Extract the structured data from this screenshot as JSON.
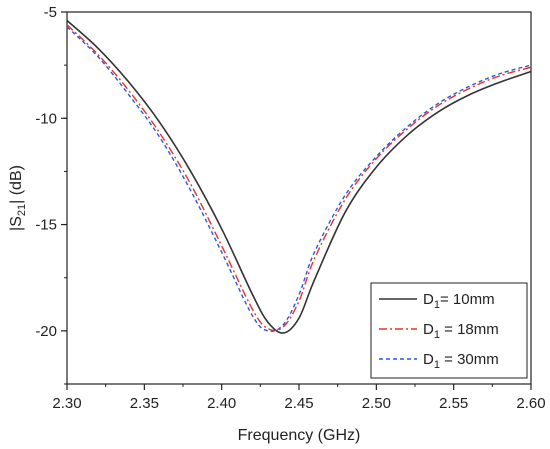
{
  "chart_data": {
    "type": "line",
    "title": "",
    "xlabel": "Frequency (GHz)",
    "ylabel": {
      "prefix": "|S",
      "sub": "21",
      "suffix": "| (dB)"
    },
    "xlim": [
      2.3,
      2.6
    ],
    "ylim": [
      -22.5,
      -5
    ],
    "xticks": [
      "2.30",
      "2.35",
      "2.40",
      "2.45",
      "2.50",
      "2.55",
      "2.60"
    ],
    "yticks": [
      "-5",
      "-10",
      "-15",
      "-20"
    ],
    "grid": false,
    "legend_position": "bottom-right",
    "x": [
      2.3,
      2.32,
      2.34,
      2.36,
      2.38,
      2.4,
      2.42,
      2.43,
      2.44,
      2.45,
      2.46,
      2.48,
      2.5,
      2.52,
      2.54,
      2.56,
      2.58,
      2.6
    ],
    "series": [
      {
        "name": "D1= 10mm",
        "legend": {
          "main": "D",
          "sub": "1",
          "rest": "= 10mm"
        },
        "color": "#333333",
        "dash": "solid",
        "values": [
          -5.4,
          -6.7,
          -8.3,
          -10.2,
          -12.5,
          -15.2,
          -18.3,
          -19.6,
          -20.1,
          -19.4,
          -17.6,
          -14.4,
          -12.3,
          -10.8,
          -9.7,
          -8.9,
          -8.3,
          -7.8
        ]
      },
      {
        "name": "D1 = 18mm",
        "legend": {
          "main": "D",
          "sub": "1",
          "rest": " = 18mm"
        },
        "color": "#e8302a",
        "dash": "dashdot",
        "values": [
          -5.6,
          -7.0,
          -8.7,
          -10.7,
          -13.1,
          -16.0,
          -19.0,
          -19.9,
          -19.8,
          -18.6,
          -16.6,
          -13.8,
          -11.9,
          -10.5,
          -9.4,
          -8.6,
          -8.0,
          -7.6
        ]
      },
      {
        "name": "D1 = 30mm",
        "legend": {
          "main": "D",
          "sub": "1",
          "rest": " = 30mm"
        },
        "color": "#2f56d8",
        "dash": "dash",
        "values": [
          -5.7,
          -7.1,
          -8.9,
          -10.9,
          -13.4,
          -16.3,
          -19.3,
          -20.0,
          -19.7,
          -18.3,
          -16.3,
          -13.6,
          -11.8,
          -10.4,
          -9.3,
          -8.5,
          -7.9,
          -7.5
        ]
      }
    ]
  }
}
